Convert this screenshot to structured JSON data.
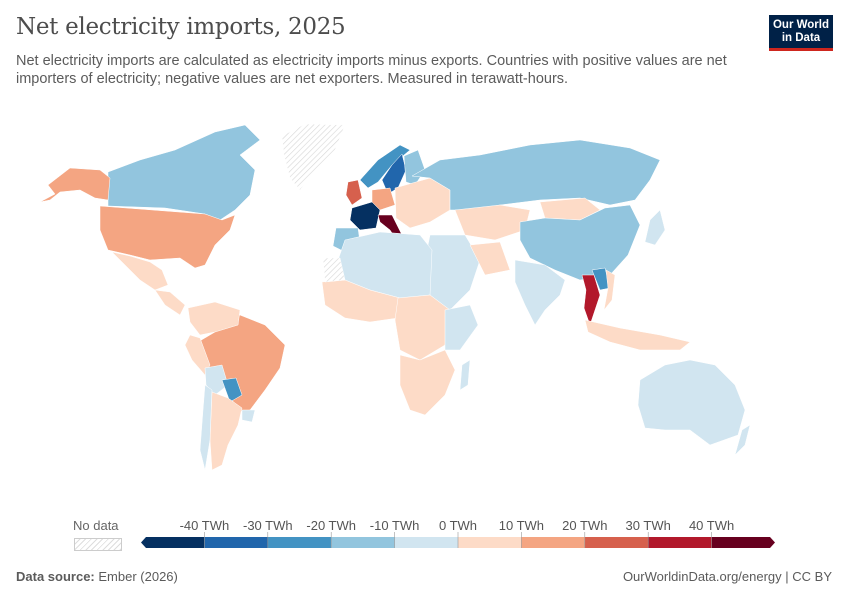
{
  "title": "Net electricity imports, 2025",
  "subtitle": "Net electricity imports are calculated as electricity imports minus exports. Countries with positive values are net importers of electricity; negative values are net exporters. Measured in terawatt-hours.",
  "logo": {
    "line1": "Our World",
    "line2": "in Data"
  },
  "footer": {
    "source_label": "Data source:",
    "source": "Ember (2026)",
    "link": "OurWorldinData.org/energy | CC BY"
  },
  "chart_data": {
    "type": "choropleth",
    "title": "Net electricity imports, 2025",
    "unit": "TWh",
    "legend": {
      "no_data_label": "No data",
      "tick_labels": [
        "-40 TWh",
        "-30 TWh",
        "-20 TWh",
        "-10 TWh",
        "0 TWh",
        "10 TWh",
        "20 TWh",
        "30 TWh",
        "40 TWh"
      ],
      "colors": [
        "#053061",
        "#2166ac",
        "#4393c3",
        "#92c5de",
        "#d1e5f0",
        "#fddbc7",
        "#f4a582",
        "#d6604d",
        "#b2182b",
        "#67001f"
      ],
      "no_data_color": "#e0e0e0"
    },
    "regions": [
      {
        "country": "Canada",
        "bin": 3
      },
      {
        "country": "United States",
        "bin": 6
      },
      {
        "country": "Alaska",
        "bin": 6
      },
      {
        "country": "Mexico",
        "bin": 5
      },
      {
        "country": "Central America",
        "bin": 5
      },
      {
        "country": "Greenland",
        "bin": -1
      },
      {
        "country": "Brazil",
        "bin": 6
      },
      {
        "country": "Colombia/Venezuela",
        "bin": 5
      },
      {
        "country": "Peru",
        "bin": 5
      },
      {
        "country": "Bolivia",
        "bin": 4
      },
      {
        "country": "Paraguay",
        "bin": 2
      },
      {
        "country": "Argentina",
        "bin": 5
      },
      {
        "country": "Chile",
        "bin": 4
      },
      {
        "country": "Uruguay",
        "bin": 4
      },
      {
        "country": "France",
        "bin": 0
      },
      {
        "country": "Italy",
        "bin": 9
      },
      {
        "country": "United Kingdom",
        "bin": 7
      },
      {
        "country": "Norway",
        "bin": 2
      },
      {
        "country": "Sweden",
        "bin": 1
      },
      {
        "country": "Finland",
        "bin": 3
      },
      {
        "country": "Spain",
        "bin": 3
      },
      {
        "country": "Germany",
        "bin": 6
      },
      {
        "country": "Eastern Europe",
        "bin": 5
      },
      {
        "country": "Russia",
        "bin": 3
      },
      {
        "country": "Kazakhstan",
        "bin": 5
      },
      {
        "country": "Mongolia",
        "bin": 5
      },
      {
        "country": "China",
        "bin": 3
      },
      {
        "country": "India",
        "bin": 4
      },
      {
        "country": "Middle East",
        "bin": 4
      },
      {
        "country": "Iran",
        "bin": 5
      },
      {
        "country": "Thailand",
        "bin": 8
      },
      {
        "country": "Laos",
        "bin": 2
      },
      {
        "country": "Vietnam",
        "bin": 5
      },
      {
        "country": "Indonesia",
        "bin": 5
      },
      {
        "country": "Australia",
        "bin": 4
      },
      {
        "country": "New Zealand",
        "bin": 4
      },
      {
        "country": "Japan",
        "bin": 4
      },
      {
        "country": "North Africa",
        "bin": 4
      },
      {
        "country": "West Africa",
        "bin": 5
      },
      {
        "country": "Central Africa",
        "bin": 5
      },
      {
        "country": "East Africa",
        "bin": 4
      },
      {
        "country": "Southern Africa",
        "bin": 5
      },
      {
        "country": "Western Sahara",
        "bin": -1
      },
      {
        "country": "Madagascar",
        "bin": 4
      }
    ]
  }
}
